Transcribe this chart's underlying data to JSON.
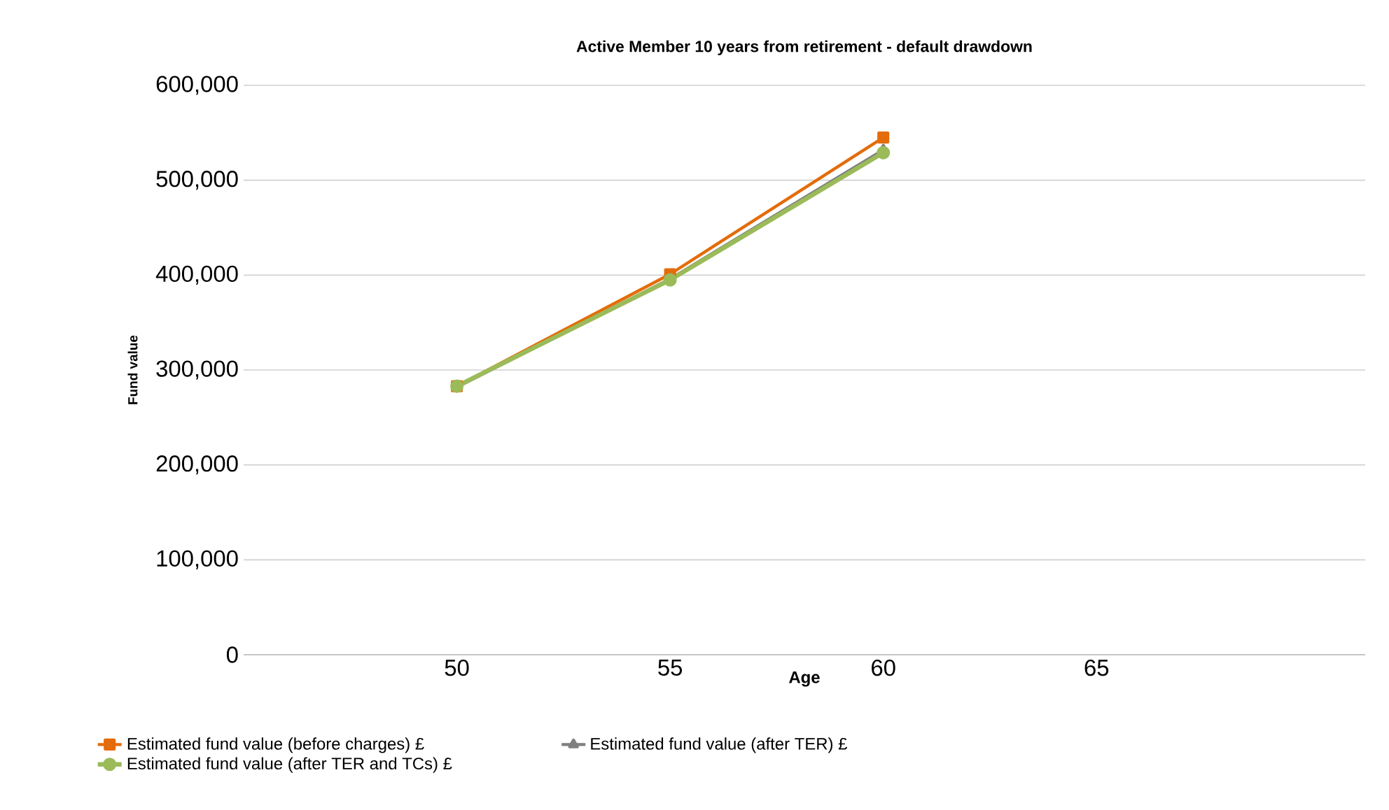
{
  "chart_data": {
    "type": "line",
    "title": "Active Member 10 years from retirement - default drawdown",
    "xlabel": "Age",
    "ylabel": "Fund value",
    "x": [
      50,
      55,
      60
    ],
    "series": [
      {
        "name": "Estimated fund value (before charges) £",
        "color": "#e46c0a",
        "marker": "square",
        "values": [
          283000,
          401000,
          545000
        ]
      },
      {
        "name": "Estimated fund value (after TER) £",
        "color": "#7f7f7f",
        "marker": "triangle",
        "values": [
          282000,
          396000,
          532000
        ]
      },
      {
        "name": "Estimated fund value (after TER and TCs) £",
        "color": "#9bbb59",
        "marker": "circle",
        "values": [
          283000,
          395000,
          529000
        ]
      }
    ],
    "xlim": [
      45,
      71.3
    ],
    "xticks": [
      50,
      55,
      60,
      65
    ],
    "ylim": [
      0,
      600000
    ],
    "yticks": [
      {
        "value": 0,
        "label": "0"
      },
      {
        "value": 100000,
        "label": "100,000"
      },
      {
        "value": 200000,
        "label": "200,000"
      },
      {
        "value": 300000,
        "label": "300,000"
      },
      {
        "value": 400000,
        "label": "400,000"
      },
      {
        "value": 500000,
        "label": "500,000"
      },
      {
        "value": 600000,
        "label": "600,000"
      }
    ],
    "grid": "y",
    "legend": "bottom",
    "line_style": "solid"
  }
}
